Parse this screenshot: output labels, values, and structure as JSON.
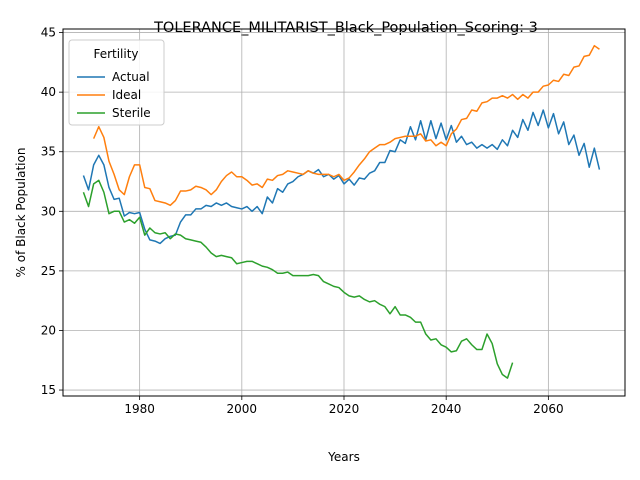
{
  "chart_data": {
    "type": "line",
    "title": "TOLERANCE_MILITARIST_Black_Population_Scoring: 3",
    "xlabel": "Years",
    "ylabel": "% of Black Population",
    "xlim": [
      1965,
      2075
    ],
    "ylim": [
      14.5,
      45.3
    ],
    "xticks": [
      1980,
      2000,
      2020,
      2040,
      2060
    ],
    "yticks": [
      15,
      20,
      25,
      30,
      35,
      40,
      45
    ],
    "grid": true,
    "legend": {
      "title": "Fertility",
      "placement": "top-left"
    },
    "series": [
      {
        "name": "Actual",
        "color": "#1f77b4",
        "x": [
          1969,
          1970,
          1971,
          1972,
          1973,
          1974,
          1975,
          1976,
          1977,
          1978,
          1979,
          1980,
          1981,
          1982,
          1983,
          1984,
          1985,
          1986,
          1987,
          1988,
          1989,
          1990,
          1991,
          1992,
          1993,
          1994,
          1995,
          1996,
          1997,
          1998,
          1999,
          2000,
          2001,
          2002,
          2003,
          2004,
          2005,
          2006,
          2007,
          2008,
          2009,
          2010,
          2011,
          2012,
          2013,
          2014,
          2015,
          2016,
          2017,
          2018,
          2019,
          2020,
          2021,
          2022,
          2023,
          2024,
          2025,
          2026,
          2027,
          2028,
          2029,
          2030,
          2031,
          2032,
          2033,
          2034,
          2035,
          2036,
          2037,
          2038,
          2039,
          2040,
          2041,
          2042,
          2043,
          2044,
          2045,
          2046,
          2047,
          2048,
          2049,
          2050,
          2051,
          2052,
          2053,
          2054,
          2055,
          2056,
          2057,
          2058,
          2059,
          2060,
          2061,
          2062,
          2063,
          2064,
          2065,
          2066,
          2067,
          2068,
          2069,
          2070
        ],
        "values": [
          33.0,
          31.8,
          33.9,
          34.7,
          33.9,
          32.0,
          31.0,
          31.1,
          29.6,
          29.9,
          29.8,
          29.9,
          28.5,
          27.6,
          27.5,
          27.3,
          27.7,
          27.9,
          28.0,
          29.1,
          29.7,
          29.7,
          30.2,
          30.2,
          30.5,
          30.4,
          30.7,
          30.5,
          30.7,
          30.4,
          30.3,
          30.2,
          30.4,
          30.0,
          30.4,
          29.8,
          31.2,
          30.7,
          31.9,
          31.6,
          32.3,
          32.5,
          32.9,
          33.1,
          33.4,
          33.2,
          33.5,
          32.9,
          33.1,
          32.7,
          33.0,
          32.3,
          32.7,
          32.2,
          32.8,
          32.7,
          33.2,
          33.4,
          34.1,
          34.1,
          35.1,
          35.0,
          36.0,
          35.7,
          37.1,
          36.0,
          37.6,
          36.0,
          37.6,
          36.1,
          37.4,
          36.0,
          37.2,
          35.8,
          36.3,
          35.6,
          35.8,
          35.3,
          35.6,
          35.3,
          35.6,
          35.2,
          36.0,
          35.5,
          36.8,
          36.2,
          37.7,
          36.8,
          38.3,
          37.2,
          38.5,
          37.0,
          38.2,
          36.5,
          37.5,
          35.6,
          36.4,
          34.7,
          35.7,
          33.7,
          35.3,
          33.5
        ]
      },
      {
        "name": "Ideal",
        "color": "#ff7f0e",
        "x": [
          1971,
          1972,
          1973,
          1974,
          1975,
          1976,
          1977,
          1978,
          1979,
          1980,
          1981,
          1982,
          1983,
          1984,
          1985,
          1986,
          1987,
          1988,
          1989,
          1990,
          1991,
          1992,
          1993,
          1994,
          1995,
          1996,
          1997,
          1998,
          1999,
          2000,
          2001,
          2002,
          2003,
          2004,
          2005,
          2006,
          2007,
          2008,
          2009,
          2010,
          2011,
          2012,
          2013,
          2014,
          2015,
          2016,
          2017,
          2018,
          2019,
          2020,
          2021,
          2022,
          2023,
          2024,
          2025,
          2026,
          2027,
          2028,
          2029,
          2030,
          2031,
          2032,
          2033,
          2034,
          2035,
          2036,
          2037,
          2038,
          2039,
          2040,
          2041,
          2042,
          2043,
          2044,
          2045,
          2046,
          2047,
          2048,
          2049,
          2050,
          2051,
          2052,
          2053,
          2054,
          2055,
          2056,
          2057,
          2058,
          2059,
          2060,
          2061,
          2062,
          2063,
          2064,
          2065,
          2066,
          2067,
          2068,
          2069,
          2070
        ],
        "values": [
          36.1,
          37.1,
          36.2,
          34.2,
          33.1,
          31.8,
          31.4,
          32.9,
          33.9,
          33.9,
          32.0,
          31.9,
          30.9,
          30.8,
          30.7,
          30.5,
          30.9,
          31.7,
          31.7,
          31.8,
          32.1,
          32.0,
          31.8,
          31.4,
          31.8,
          32.5,
          33.0,
          33.3,
          32.9,
          32.9,
          32.6,
          32.2,
          32.3,
          32.0,
          32.7,
          32.6,
          33.0,
          33.1,
          33.4,
          33.3,
          33.2,
          33.1,
          33.4,
          33.2,
          33.1,
          33.1,
          33.1,
          32.9,
          33.1,
          32.6,
          32.8,
          33.3,
          33.9,
          34.4,
          35.0,
          35.3,
          35.6,
          35.6,
          35.8,
          36.1,
          36.2,
          36.3,
          36.3,
          36.3,
          36.5,
          35.9,
          36.0,
          35.5,
          35.8,
          35.5,
          36.5,
          36.9,
          37.7,
          37.8,
          38.5,
          38.4,
          39.1,
          39.2,
          39.5,
          39.5,
          39.7,
          39.5,
          39.8,
          39.4,
          39.8,
          39.5,
          40.0,
          40.0,
          40.5,
          40.6,
          41.0,
          40.9,
          41.5,
          41.4,
          42.1,
          42.2,
          43.0,
          43.1,
          43.9,
          43.6
        ]
      },
      {
        "name": "Sterile",
        "color": "#2ca02c",
        "x": [
          1969,
          1970,
          1971,
          1972,
          1973,
          1974,
          1975,
          1976,
          1977,
          1978,
          1979,
          1980,
          1981,
          1982,
          1983,
          1984,
          1985,
          1986,
          1987,
          1988,
          1989,
          1990,
          1991,
          1992,
          1993,
          1994,
          1995,
          1996,
          1997,
          1998,
          1999,
          2000,
          2001,
          2002,
          2003,
          2004,
          2005,
          2006,
          2007,
          2008,
          2009,
          2010,
          2011,
          2012,
          2013,
          2014,
          2015,
          2016,
          2017,
          2018,
          2019,
          2020,
          2021,
          2022,
          2023,
          2024,
          2025,
          2026,
          2027,
          2028,
          2029,
          2030,
          2031,
          2032,
          2033,
          2034,
          2035,
          2036,
          2037,
          2038,
          2039,
          2040,
          2041,
          2042,
          2043,
          2044,
          2045,
          2046,
          2047,
          2048,
          2049,
          2050,
          2051,
          2052,
          2053
        ],
        "values": [
          31.6,
          30.4,
          32.3,
          32.6,
          31.6,
          29.8,
          30.0,
          30.0,
          29.1,
          29.3,
          29.0,
          29.5,
          28.0,
          28.6,
          28.2,
          28.1,
          28.2,
          27.7,
          28.1,
          28.0,
          27.7,
          27.6,
          27.5,
          27.4,
          27.0,
          26.5,
          26.2,
          26.3,
          26.2,
          26.1,
          25.6,
          25.7,
          25.8,
          25.8,
          25.6,
          25.4,
          25.3,
          25.1,
          24.8,
          24.8,
          24.9,
          24.6,
          24.6,
          24.6,
          24.6,
          24.7,
          24.6,
          24.1,
          23.9,
          23.7,
          23.6,
          23.2,
          22.9,
          22.8,
          22.9,
          22.6,
          22.4,
          22.5,
          22.2,
          22.0,
          21.4,
          22.0,
          21.3,
          21.3,
          21.1,
          20.7,
          20.7,
          19.7,
          19.2,
          19.3,
          18.8,
          18.6,
          18.2,
          18.3,
          19.1,
          19.3,
          18.8,
          18.4,
          18.4,
          19.7,
          18.9,
          17.2,
          16.3,
          16.0,
          17.3
        ]
      }
    ]
  }
}
